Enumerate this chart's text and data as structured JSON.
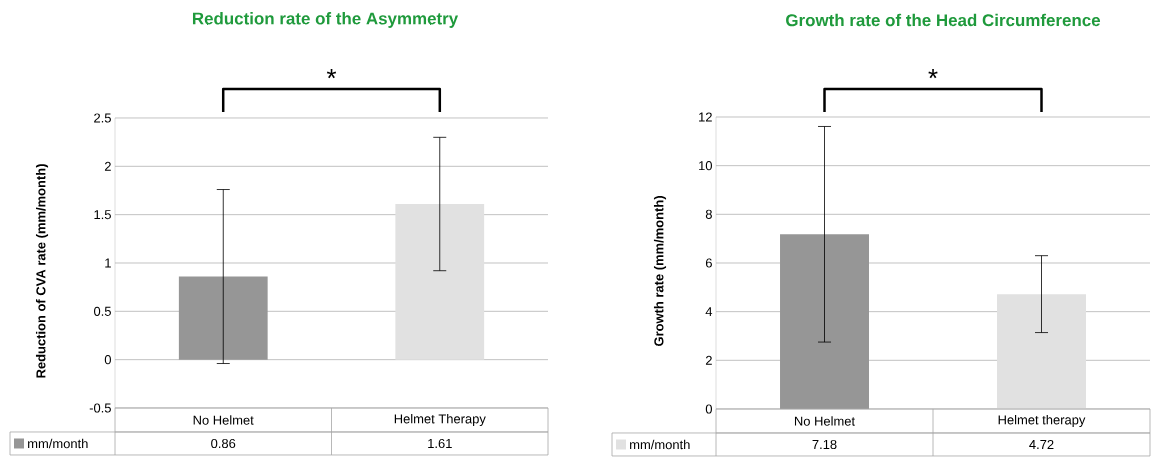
{
  "chart_data": [
    {
      "type": "bar",
      "title": "Reduction rate of the Asymmetry",
      "ylabel": "Reduction of CVA rate (mm/month)",
      "categories": [
        "No Helmet",
        "Helmet Therapy"
      ],
      "series": [
        {
          "name": "mm/month",
          "color": "#969696",
          "colors": [
            "#969696",
            "#e1e1e1"
          ],
          "values": [
            0.86,
            1.61
          ],
          "errors": [
            0.9,
            0.69
          ]
        }
      ],
      "ylim": [
        -0.5,
        2.5
      ],
      "yticks": [
        -0.5,
        0,
        0.5,
        1,
        1.5,
        2,
        2.5
      ],
      "grid": "y",
      "data_labels": true,
      "annotations": [
        "*"
      ]
    },
    {
      "type": "bar",
      "title": "Growth rate of the Head Circumference",
      "ylabel": "Growth rate (mm/month)",
      "categories": [
        "No Helmet",
        "Helmet therapy"
      ],
      "series": [
        {
          "name": "mm/month",
          "color": "#e1e1e1",
          "colors": [
            "#969696",
            "#e1e1e1"
          ],
          "values": [
            7.18,
            4.72
          ],
          "errors": [
            4.43,
            1.58
          ]
        }
      ],
      "ylim": [
        0,
        12
      ],
      "yticks": [
        0,
        2,
        4,
        6,
        8,
        10,
        12
      ],
      "grid": "y",
      "data_labels": true,
      "annotations": [
        "*"
      ]
    }
  ]
}
